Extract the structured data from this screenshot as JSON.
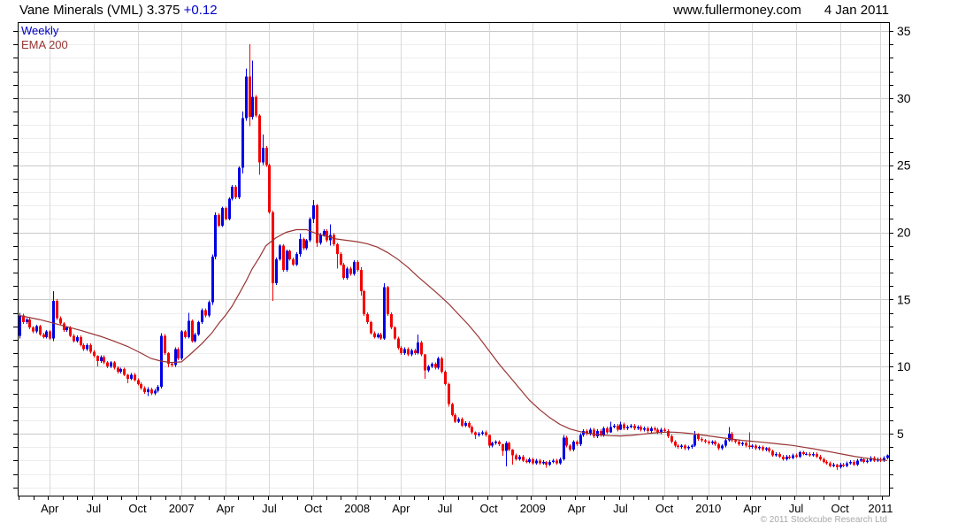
{
  "header": {
    "title": "Vane Minerals (VML) 3.375",
    "change": "+0.12",
    "site": "www.fullermoney.com",
    "date": "4 Jan 2011"
  },
  "legend": {
    "timeframe": "Weekly",
    "overlay": "EMA 200"
  },
  "footer": {
    "copyright": "© 2011 Stockcube Research Ltd"
  },
  "colors": {
    "up": "#0000e6",
    "down": "#f40000",
    "ema": "#993333",
    "grid_minor": "#ededed",
    "grid_major": "#c9c9c9",
    "grid_vertical": "#d9d9d9",
    "border": "#000000",
    "tick": "#000000",
    "axis_text": "#000000",
    "title_text": "#000000",
    "change_text": "#0000cc",
    "copyright_text": "#a8a8a8"
  },
  "chart_data": {
    "type": "candlestick",
    "title": "Vane Minerals (VML) weekly candles with 200-period EMA",
    "symbol": "Vane Minerals (VML)",
    "last_price": 3.375,
    "change": 0.12,
    "timeframe": "Weekly",
    "overlay": "EMA 200",
    "y_axis": {
      "min": 0.4,
      "max": 35.66,
      "tick_step": 1,
      "label_step": 5,
      "labels": [
        "5",
        "10",
        "15",
        "20",
        "25",
        "30",
        "35"
      ]
    },
    "x_axis": {
      "weeks_total": 258,
      "labels": [
        {
          "week": 9,
          "text": "Apr"
        },
        {
          "week": 22,
          "text": "Jul"
        },
        {
          "week": 35,
          "text": "Oct"
        },
        {
          "week": 48,
          "text": "2007"
        },
        {
          "week": 61,
          "text": "Apr"
        },
        {
          "week": 74,
          "text": "Jul"
        },
        {
          "week": 87,
          "text": "Oct"
        },
        {
          "week": 100,
          "text": "2008"
        },
        {
          "week": 113,
          "text": "Apr"
        },
        {
          "week": 126,
          "text": "Jul"
        },
        {
          "week": 139,
          "text": "Oct"
        },
        {
          "week": 152,
          "text": "2009"
        },
        {
          "week": 165,
          "text": "Apr"
        },
        {
          "week": 178,
          "text": "Jul"
        },
        {
          "week": 191,
          "text": "Oct"
        },
        {
          "week": 204,
          "text": "2010"
        },
        {
          "week": 217,
          "text": "Apr"
        },
        {
          "week": 230,
          "text": "Jul"
        },
        {
          "week": 243,
          "text": "Oct"
        },
        {
          "week": 255,
          "text": "2011"
        }
      ]
    },
    "first_open": 12.3,
    "closes": [
      13.8,
      13.3,
      13.5,
      12.9,
      12.6,
      13.0,
      12.4,
      12.2,
      12.6,
      12.1,
      14.9,
      13.6,
      13.2,
      12.7,
      12.9,
      12.3,
      11.9,
      12.2,
      11.6,
      11.3,
      11.6,
      11.1,
      10.8,
      10.4,
      10.7,
      10.3,
      10.0,
      10.3,
      9.9,
      9.6,
      9.8,
      9.4,
      9.1,
      9.4,
      9.0,
      8.7,
      8.4,
      8.1,
      8.3,
      8.0,
      8.2,
      8.5,
      12.3,
      11.0,
      10.2,
      10.1,
      11.3,
      10.6,
      12.6,
      12.2,
      13.4,
      11.9,
      12.4,
      13.3,
      14.2,
      13.8,
      14.8,
      18.2,
      21.3,
      20.5,
      21.8,
      21.0,
      22.5,
      23.4,
      22.6,
      24.8,
      28.5,
      31.6,
      28.6,
      30.1,
      28.7,
      25.2,
      26.3,
      25.0,
      21.5,
      16.2,
      18.0,
      19.0,
      17.2,
      18.6,
      18.0,
      17.6,
      18.4,
      19.5,
      18.8,
      19.4,
      21.0,
      22.0,
      19.2,
      19.8,
      20.1,
      19.4,
      19.8,
      19.1,
      18.4,
      17.6,
      16.6,
      17.3,
      16.9,
      17.8,
      17.2,
      15.6,
      13.9,
      13.3,
      12.5,
      12.2,
      12.4,
      12.1,
      15.9,
      13.9,
      12.9,
      12.1,
      11.4,
      11.0,
      11.3,
      10.9,
      11.2,
      11.0,
      11.8,
      10.9,
      9.7,
      10.0,
      10.2,
      9.9,
      10.6,
      9.6,
      8.7,
      7.2,
      6.4,
      5.9,
      6.1,
      5.6,
      5.8,
      5.5,
      5.1,
      4.9,
      5.0,
      5.1,
      4.9,
      4.1,
      4.3,
      4.4,
      4.2,
      3.7,
      4.3,
      3.8,
      3.4,
      3.1,
      3.3,
      3.0,
      2.9,
      3.1,
      2.8,
      3.0,
      2.8,
      2.9,
      2.7,
      2.9,
      3.0,
      2.8,
      3.1,
      4.7,
      4.1,
      3.8,
      4.4,
      4.2,
      4.9,
      5.2,
      5.0,
      5.3,
      4.8,
      5.2,
      4.9,
      5.4,
      5.1,
      5.5,
      5.6,
      5.3,
      5.7,
      5.4,
      5.5,
      5.6,
      5.4,
      5.5,
      5.3,
      5.4,
      5.2,
      5.4,
      5.3,
      5.1,
      5.3,
      5.2,
      4.8,
      4.4,
      4.1,
      4.0,
      4.1,
      3.9,
      4.0,
      4.1,
      4.9,
      4.6,
      4.5,
      4.4,
      4.3,
      4.4,
      4.2,
      3.9,
      4.1,
      4.5,
      5.0,
      4.5,
      4.4,
      4.2,
      4.3,
      4.1,
      4.0,
      4.1,
      3.9,
      4.0,
      3.8,
      3.9,
      3.7,
      3.4,
      3.5,
      3.3,
      3.1,
      3.3,
      3.2,
      3.4,
      3.3,
      3.6,
      3.5,
      3.5,
      3.4,
      3.5,
      3.3,
      3.1,
      2.9,
      2.8,
      2.6,
      2.7,
      2.5,
      2.7,
      2.6,
      2.8,
      2.9,
      2.7,
      3.0,
      3.1,
      2.9,
      3.0,
      3.2,
      3.0,
      3.1,
      3.0,
      3.2,
      3.375
    ],
    "hl_overrides": {
      "0": [
        14.0,
        12.1
      ],
      "10": [
        15.6,
        11.9
      ],
      "23": [
        10.85,
        10.0
      ],
      "32": [
        9.45,
        8.75
      ],
      "38": [
        8.45,
        7.8
      ],
      "42": [
        12.5,
        8.35
      ],
      "44": [
        11.05,
        9.95
      ],
      "50": [
        14.0,
        12.1
      ],
      "57": [
        18.35,
        14.6
      ],
      "58": [
        21.5,
        18.0
      ],
      "66": [
        29.0,
        24.4
      ],
      "67": [
        32.2,
        28.3
      ],
      "68": [
        34.0,
        27.9
      ],
      "69": [
        32.8,
        28.4
      ],
      "71": [
        28.8,
        24.3
      ],
      "72": [
        27.3,
        25.0
      ],
      "75": [
        21.6,
        14.9
      ],
      "83": [
        19.9,
        18.2
      ],
      "87": [
        22.4,
        20.7
      ],
      "88": [
        22.1,
        18.9
      ],
      "92": [
        20.6,
        19.0
      ],
      "94": [
        19.2,
        17.3
      ],
      "101": [
        17.4,
        15.3
      ],
      "108": [
        16.2,
        12.0
      ],
      "118": [
        12.4,
        10.9
      ],
      "120": [
        10.95,
        9.1
      ],
      "127": [
        8.8,
        7.0
      ],
      "135": [
        5.15,
        4.6
      ],
      "139": [
        4.95,
        3.95
      ],
      "143": [
        4.25,
        3.35
      ],
      "144": [
        4.45,
        2.56
      ],
      "146": [
        3.85,
        2.7
      ],
      "156": [
        2.95,
        2.45
      ],
      "161": [
        4.9,
        3.0
      ],
      "175": [
        5.9,
        5.05
      ],
      "178": [
        5.9,
        5.25
      ],
      "200": [
        5.2,
        4.0
      ],
      "210": [
        5.5,
        4.4
      ],
      "216": [
        5.1,
        3.85
      ],
      "242": [
        2.75,
        2.3
      ],
      "257": [
        3.45,
        3.1
      ]
    },
    "ema_points": [
      [
        0,
        13.8
      ],
      [
        6,
        13.5
      ],
      [
        12,
        13.1
      ],
      [
        18,
        12.7
      ],
      [
        24,
        12.25
      ],
      [
        28,
        11.9
      ],
      [
        32,
        11.5
      ],
      [
        36,
        11.0
      ],
      [
        39,
        10.6
      ],
      [
        42,
        10.4
      ],
      [
        45,
        10.3
      ],
      [
        48,
        10.35
      ],
      [
        51,
        11.0
      ],
      [
        54,
        11.7
      ],
      [
        57,
        12.5
      ],
      [
        59,
        13.2
      ],
      [
        61,
        13.8
      ],
      [
        63,
        14.5
      ],
      [
        65,
        15.4
      ],
      [
        67,
        16.3
      ],
      [
        69,
        17.3
      ],
      [
        71,
        18.1
      ],
      [
        73,
        19.0
      ],
      [
        76,
        19.6
      ],
      [
        79,
        20.0
      ],
      [
        82,
        20.2
      ],
      [
        85,
        20.2
      ],
      [
        88,
        19.9
      ],
      [
        91,
        19.7
      ],
      [
        94,
        19.5
      ],
      [
        97,
        19.4
      ],
      [
        100,
        19.3
      ],
      [
        103,
        19.15
      ],
      [
        106,
        18.9
      ],
      [
        109,
        18.5
      ],
      [
        112,
        18.0
      ],
      [
        115,
        17.4
      ],
      [
        118,
        16.7
      ],
      [
        121,
        16.05
      ],
      [
        124,
        15.4
      ],
      [
        127,
        14.7
      ],
      [
        130,
        13.9
      ],
      [
        133,
        13.1
      ],
      [
        136,
        12.2
      ],
      [
        139,
        11.2
      ],
      [
        142,
        10.2
      ],
      [
        145,
        9.3
      ],
      [
        148,
        8.4
      ],
      [
        151,
        7.5
      ],
      [
        154,
        6.8
      ],
      [
        157,
        6.2
      ],
      [
        160,
        5.7
      ],
      [
        163,
        5.35
      ],
      [
        166,
        5.15
      ],
      [
        169,
        5.0
      ],
      [
        172,
        4.9
      ],
      [
        175,
        4.85
      ],
      [
        178,
        4.83
      ],
      [
        181,
        4.87
      ],
      [
        184,
        4.95
      ],
      [
        187,
        5.03
      ],
      [
        190,
        5.1
      ],
      [
        193,
        5.12
      ],
      [
        196,
        5.08
      ],
      [
        199,
        5.0
      ],
      [
        202,
        4.9
      ],
      [
        205,
        4.8
      ],
      [
        208,
        4.7
      ],
      [
        211,
        4.6
      ],
      [
        214,
        4.5
      ],
      [
        217,
        4.43
      ],
      [
        220,
        4.36
      ],
      [
        223,
        4.28
      ],
      [
        226,
        4.2
      ],
      [
        229,
        4.12
      ],
      [
        232,
        4.0
      ],
      [
        235,
        3.88
      ],
      [
        238,
        3.74
      ],
      [
        241,
        3.6
      ],
      [
        244,
        3.46
      ],
      [
        247,
        3.32
      ],
      [
        250,
        3.2
      ],
      [
        253,
        3.1
      ],
      [
        256,
        3.02
      ],
      [
        257,
        3.0
      ]
    ]
  }
}
